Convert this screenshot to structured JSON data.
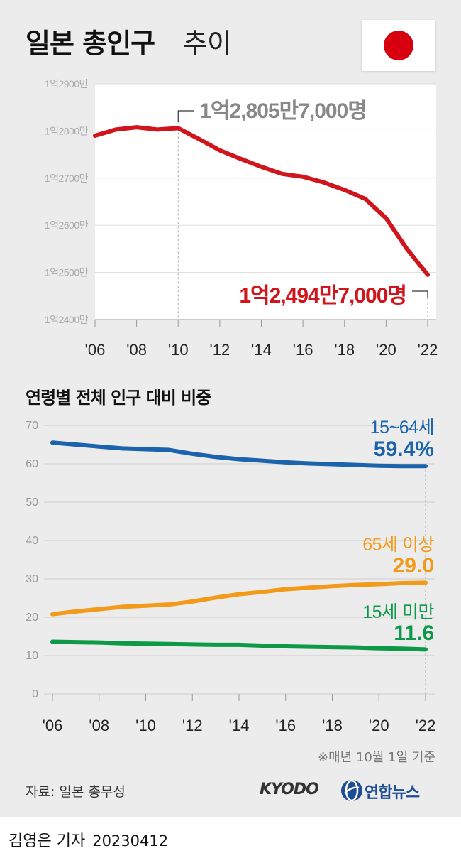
{
  "title": {
    "main": "일본 총인구",
    "sub": "추이"
  },
  "flag_icon": "japan-flag",
  "colors": {
    "total": "#d0161c",
    "working": "#1b63aa",
    "elderly": "#f29b1a",
    "youth": "#0d9a48",
    "panel_bg": "#ececec"
  },
  "chart_data": [
    {
      "type": "line",
      "title": "일본 총인구 추이",
      "y_unit": "만 명",
      "ylim": [
        12400,
        12900
      ],
      "y_ticks": [
        12400,
        12500,
        12600,
        12700,
        12800,
        12900
      ],
      "y_tick_labels": [
        "1억2400만",
        "1억2500만",
        "1억2600만",
        "1억2700만",
        "1억2800만",
        "1억2900만"
      ],
      "x_ticks": [
        2006,
        2008,
        2010,
        2012,
        2014,
        2016,
        2018,
        2020,
        2022
      ],
      "x_tick_labels": [
        "'06",
        "'08",
        "'10",
        "'12",
        "'14",
        "'16",
        "'18",
        "'20",
        "'22"
      ],
      "grid": true,
      "x": [
        2006,
        2007,
        2008,
        2009,
        2010,
        2011,
        2012,
        2013,
        2014,
        2015,
        2016,
        2017,
        2018,
        2019,
        2020,
        2021,
        2022
      ],
      "values": [
        12790,
        12803,
        12808,
        12803,
        12806,
        12783,
        12759,
        12741,
        12724,
        12709,
        12703,
        12691,
        12675,
        12656,
        12615,
        12550,
        12495
      ],
      "annotations": [
        {
          "x": 2010,
          "value": 12806,
          "label": "1억2,805만7,000명"
        },
        {
          "x": 2022,
          "value": 12495,
          "label": "1억2,494만7,000명"
        }
      ]
    },
    {
      "type": "line",
      "title": "연령별 전체 인구 대비 비중",
      "ylim": [
        0,
        70
      ],
      "y_ticks": [
        0,
        10,
        20,
        30,
        40,
        50,
        60,
        70
      ],
      "x_ticks": [
        2006,
        2008,
        2010,
        2012,
        2014,
        2016,
        2018,
        2020,
        2022
      ],
      "x_tick_labels": [
        "'06",
        "'08",
        "'10",
        "'12",
        "'14",
        "'16",
        "'18",
        "'20",
        "'22"
      ],
      "grid": true,
      "x": [
        2006,
        2007,
        2008,
        2009,
        2010,
        2011,
        2012,
        2013,
        2014,
        2015,
        2016,
        2017,
        2018,
        2019,
        2020,
        2021,
        2022
      ],
      "series": [
        {
          "name": "15~64세",
          "final_label": "59.4%",
          "color": "#1b63aa",
          "values": [
            65.5,
            65.0,
            64.5,
            64.0,
            63.8,
            63.6,
            62.6,
            61.8,
            61.2,
            60.8,
            60.4,
            60.1,
            59.9,
            59.7,
            59.5,
            59.4,
            59.4
          ]
        },
        {
          "name": "65세 이상",
          "final_label": "29.0",
          "color": "#f29b1a",
          "values": [
            20.8,
            21.5,
            22.1,
            22.7,
            23.0,
            23.3,
            24.1,
            25.1,
            26.0,
            26.6,
            27.3,
            27.7,
            28.1,
            28.4,
            28.6,
            28.9,
            29.0
          ]
        },
        {
          "name": "15세 미만",
          "final_label": "11.6",
          "color": "#0d9a48",
          "values": [
            13.6,
            13.5,
            13.4,
            13.2,
            13.1,
            13.0,
            12.9,
            12.8,
            12.8,
            12.6,
            12.4,
            12.3,
            12.2,
            12.1,
            11.9,
            11.8,
            11.6
          ]
        }
      ]
    }
  ],
  "footer": {
    "note": "※매년 10월 1일 기준",
    "source": "자료: 일본 총무성",
    "kyodo": "KYODO",
    "yonhap": "연합뉴스",
    "byline": "김영은 기자",
    "date": "20230412"
  }
}
